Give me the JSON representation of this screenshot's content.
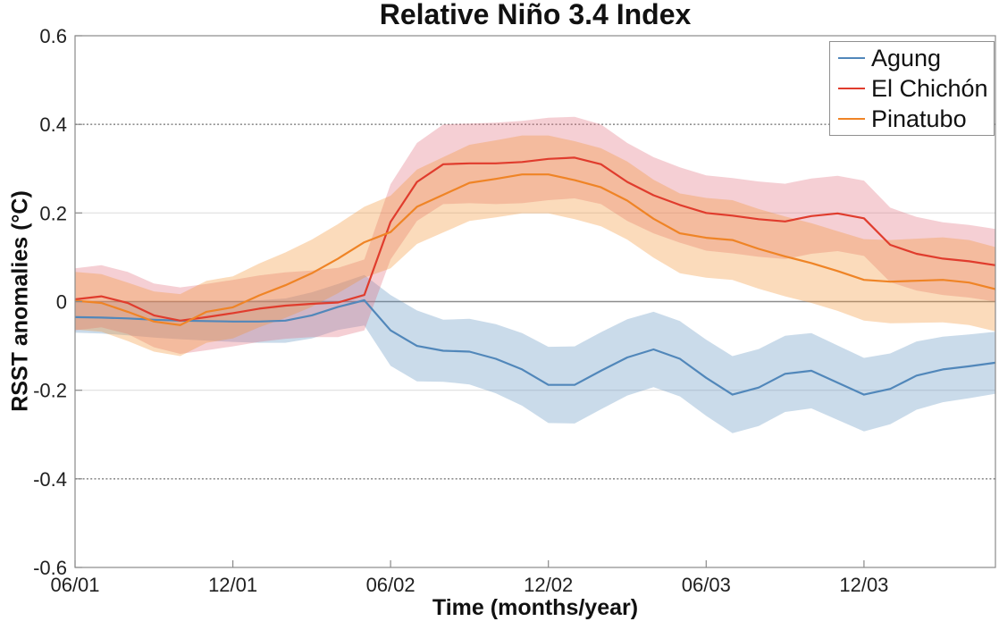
{
  "chart_data": {
    "type": "line",
    "title": "Relative Niño 3.4 Index",
    "xlabel": "Time (months/year)",
    "ylabel": "RSST anomalies (°C)",
    "x_description": "monthly samples; month 0 = tick 06/01, month 35 = 05/04 (month/year ticks)",
    "xlim": [
      0,
      35
    ],
    "ylim": [
      -0.6,
      0.6
    ],
    "xtick_positions": [
      0,
      6,
      12,
      18,
      24,
      30
    ],
    "xtick_labels": [
      "06/01",
      "12/01",
      "06/02",
      "12/02",
      "06/03",
      "12/03"
    ],
    "ytick_values": [
      -0.6,
      -0.4,
      -0.2,
      0,
      0.2,
      0.4,
      0.6
    ],
    "ytick_labels": [
      "-0.6",
      "-0.4",
      "-0.2",
      "0",
      "0.2",
      "0.4",
      "0.6"
    ],
    "grid": {
      "light_solid_at": [
        0.2,
        -0.2
      ],
      "zero_line_at": 0,
      "dotted_at": [
        0.4,
        -0.4
      ]
    },
    "legend_position": "top-right-inside",
    "x": [
      0,
      1,
      2,
      3,
      4,
      5,
      6,
      7,
      8,
      9,
      10,
      11,
      12,
      13,
      14,
      15,
      16,
      17,
      18,
      19,
      20,
      21,
      22,
      23,
      24,
      25,
      26,
      27,
      28,
      29,
      30,
      31,
      32,
      33,
      34,
      35
    ],
    "series": [
      {
        "name": "Agung",
        "color": "#5187ba",
        "band_color": "#5187ba",
        "band_opacity": 0.3,
        "mean": [
          -0.035,
          -0.036,
          -0.038,
          -0.041,
          -0.043,
          -0.044,
          -0.045,
          -0.045,
          -0.043,
          -0.031,
          -0.012,
          0.003,
          -0.065,
          -0.1,
          -0.111,
          -0.113,
          -0.129,
          -0.153,
          -0.188,
          -0.188,
          -0.156,
          -0.126,
          -0.108,
          -0.129,
          -0.172,
          -0.21,
          -0.194,
          -0.163,
          -0.156,
          -0.183,
          -0.21,
          -0.197,
          -0.167,
          -0.153,
          -0.146,
          -0.138
        ],
        "upper": [
          0.0,
          0.0,
          0.0,
          -0.001,
          -0.001,
          0.0,
          0.001,
          0.003,
          0.007,
          0.021,
          0.04,
          0.06,
          0.015,
          -0.02,
          -0.041,
          -0.039,
          -0.051,
          -0.071,
          -0.102,
          -0.101,
          -0.069,
          -0.04,
          -0.023,
          -0.044,
          -0.086,
          -0.123,
          -0.107,
          -0.077,
          -0.071,
          -0.099,
          -0.127,
          -0.117,
          -0.09,
          -0.079,
          -0.074,
          -0.068
        ],
        "lower": [
          -0.07,
          -0.072,
          -0.076,
          -0.081,
          -0.085,
          -0.088,
          -0.091,
          -0.093,
          -0.093,
          -0.083,
          -0.064,
          -0.054,
          -0.145,
          -0.18,
          -0.181,
          -0.187,
          -0.207,
          -0.235,
          -0.274,
          -0.275,
          -0.243,
          -0.212,
          -0.193,
          -0.214,
          -0.258,
          -0.297,
          -0.281,
          -0.249,
          -0.241,
          -0.267,
          -0.293,
          -0.277,
          -0.244,
          -0.227,
          -0.218,
          -0.208
        ]
      },
      {
        "name": "El Chichón",
        "color": "#e03c2d",
        "band_color": "#e06a78",
        "band_opacity": 0.32,
        "mean": [
          0.005,
          0.012,
          -0.003,
          -0.031,
          -0.043,
          -0.035,
          -0.026,
          -0.016,
          -0.009,
          -0.005,
          -0.002,
          0.015,
          0.18,
          0.27,
          0.31,
          0.312,
          0.312,
          0.315,
          0.322,
          0.325,
          0.31,
          0.27,
          0.24,
          0.218,
          0.2,
          0.194,
          0.186,
          0.181,
          0.193,
          0.199,
          0.188,
          0.128,
          0.108,
          0.097,
          0.091,
          0.082
        ],
        "upper": [
          0.075,
          0.082,
          0.067,
          0.041,
          0.032,
          0.04,
          0.049,
          0.059,
          0.066,
          0.07,
          0.076,
          0.095,
          0.265,
          0.358,
          0.4,
          0.402,
          0.404,
          0.408,
          0.415,
          0.417,
          0.4,
          0.358,
          0.326,
          0.303,
          0.285,
          0.279,
          0.271,
          0.266,
          0.278,
          0.284,
          0.273,
          0.212,
          0.191,
          0.179,
          0.173,
          0.164
        ],
        "lower": [
          -0.065,
          -0.058,
          -0.073,
          -0.103,
          -0.118,
          -0.11,
          -0.101,
          -0.091,
          -0.084,
          -0.08,
          -0.08,
          -0.065,
          0.095,
          0.182,
          0.22,
          0.222,
          0.22,
          0.222,
          0.229,
          0.233,
          0.22,
          0.182,
          0.154,
          0.133,
          0.115,
          0.109,
          0.101,
          0.096,
          0.108,
          0.114,
          0.103,
          0.044,
          0.025,
          0.015,
          0.009,
          0.0
        ]
      },
      {
        "name": "Pinatubo",
        "color": "#ef8426",
        "band_color": "#f29232",
        "band_opacity": 0.33,
        "mean": [
          0.002,
          -0.003,
          -0.023,
          -0.045,
          -0.053,
          -0.023,
          -0.013,
          0.014,
          0.037,
          0.064,
          0.097,
          0.134,
          0.157,
          0.214,
          0.241,
          0.268,
          0.277,
          0.287,
          0.287,
          0.274,
          0.258,
          0.228,
          0.187,
          0.154,
          0.144,
          0.139,
          0.119,
          0.102,
          0.087,
          0.069,
          0.049,
          0.045,
          0.047,
          0.049,
          0.043,
          0.028
        ],
        "upper": [
          0.067,
          0.062,
          0.043,
          0.023,
          0.017,
          0.047,
          0.057,
          0.086,
          0.111,
          0.14,
          0.175,
          0.214,
          0.239,
          0.298,
          0.326,
          0.354,
          0.364,
          0.375,
          0.375,
          0.362,
          0.346,
          0.316,
          0.275,
          0.244,
          0.234,
          0.229,
          0.209,
          0.192,
          0.177,
          0.159,
          0.141,
          0.139,
          0.142,
          0.145,
          0.139,
          0.123
        ],
        "lower": [
          -0.063,
          -0.068,
          -0.089,
          -0.113,
          -0.123,
          -0.093,
          -0.083,
          -0.058,
          -0.037,
          -0.012,
          0.019,
          0.054,
          0.075,
          0.13,
          0.156,
          0.182,
          0.19,
          0.199,
          0.199,
          0.186,
          0.17,
          0.14,
          0.099,
          0.064,
          0.054,
          0.049,
          0.029,
          0.012,
          -0.003,
          -0.021,
          -0.043,
          -0.049,
          -0.048,
          -0.047,
          -0.053,
          -0.067
        ]
      }
    ]
  },
  "legend": {
    "items": [
      {
        "label": "Agung"
      },
      {
        "label": "El Chichón"
      },
      {
        "label": "Pinatubo"
      }
    ]
  },
  "style_colors": {
    "zero_line": "#8c8c8c",
    "light_grid": "#dcdcdc",
    "dotted_line": "#8f8f8f",
    "frame": "#8a8a8a",
    "tick_text": "#1f1f1f"
  }
}
